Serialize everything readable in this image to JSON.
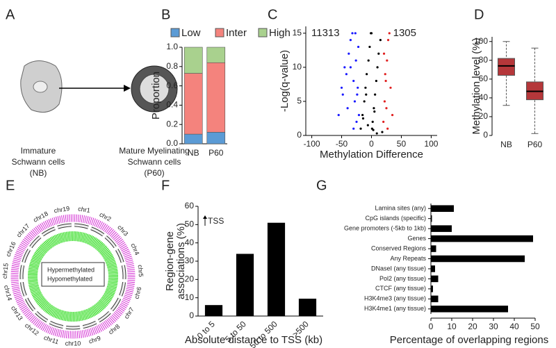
{
  "panel_a": {
    "panel_label": "A",
    "left_lines": [
      "Immature",
      "Schwann cells",
      "(NB)"
    ],
    "right_lines": [
      "Mature Myelinating",
      "Schwann cells",
      "(P60)"
    ]
  },
  "panel_e": {
    "panel_label": "E",
    "chromosomes": [
      "chr1",
      "chr2",
      "chr3",
      "chr4",
      "chr5",
      "chr6",
      "chr7",
      "chr8",
      "chr9",
      "chr10",
      "chr11",
      "chr12",
      "chr13",
      "chr14",
      "chr15",
      "chr16",
      "chr17",
      "chr18",
      "chr19"
    ],
    "legend": [
      "Hypermethylated",
      "Hypomethylated"
    ]
  },
  "chart_data": [
    {
      "type": "stacked_bar",
      "panel_label": "B",
      "y_label": "Proportion",
      "categories": [
        "NB",
        "P60"
      ],
      "series": [
        {
          "name": "Low",
          "color": "#5b9bd5",
          "values": [
            0.1,
            0.12
          ]
        },
        {
          "name": "Inter",
          "color": "#f4837d",
          "values": [
            0.63,
            0.72
          ]
        },
        {
          "name": "High",
          "color": "#a9d18e",
          "values": [
            0.27,
            0.16
          ]
        }
      ],
      "ylim": [
        0,
        1
      ],
      "yticks": [
        {
          "value": 0,
          "label": "0.0"
        },
        0.2,
        0.4,
        0.6,
        0.8,
        {
          "value": 1,
          "label": "1.0"
        }
      ]
    },
    {
      "type": "scatter",
      "panel_label": "C",
      "x_label": "Methylation Difference",
      "y_label": "-Log(q-value)",
      "annotations": [
        {
          "text": "11313",
          "color": "#1a1aff"
        },
        {
          "text": "1305",
          "color": "#e02020"
        }
      ],
      "series": [
        {
          "color": "#1a1aff",
          "x": [
            -55,
            -48,
            -42,
            -38,
            -35,
            -32,
            -30,
            -28,
            -26,
            -25,
            -23,
            -22,
            -40,
            -45,
            -30,
            -27,
            -24,
            -35,
            -50,
            -21
          ],
          "values": [
            3,
            6,
            9,
            12,
            14,
            15,
            8,
            5,
            11,
            2,
            7,
            13,
            4,
            10,
            1,
            15,
            6,
            10,
            7,
            3
          ]
        },
        {
          "color": "#000000",
          "x": [
            -18,
            -15,
            -12,
            -10,
            -8,
            -5,
            -3,
            0,
            2,
            4,
            6,
            8,
            10,
            12,
            15,
            18,
            -6,
            3,
            -14,
            9,
            1,
            -1,
            5,
            -9
          ],
          "values": [
            1,
            3,
            5,
            7,
            9,
            11,
            13,
            15,
            2,
            4,
            6,
            8,
            10,
            12,
            14,
            0.5,
            1.5,
            0.8,
            2.5,
            0.3,
            1,
            15,
            3.5,
            6
          ]
        },
        {
          "color": "#e02020",
          "x": [
            20,
            22,
            24,
            26,
            28,
            30,
            32,
            35,
            21,
            23,
            25,
            27
          ],
          "values": [
            2,
            5,
            8,
            11,
            14,
            15,
            7,
            3,
            12,
            9,
            4,
            1
          ]
        }
      ],
      "xlim": [
        -110,
        110
      ],
      "xticks": [
        -100,
        -50,
        0,
        50,
        100
      ],
      "ylim": [
        0,
        16
      ],
      "yticks": [
        0,
        5,
        10,
        15
      ]
    },
    {
      "type": "box",
      "panel_label": "D",
      "y_label": "Methylation level (%)",
      "categories": [
        "NB",
        "P60"
      ],
      "color": "#b5373a",
      "boxes": [
        {
          "whislo": 32,
          "q1": 64,
          "med": 74,
          "q3": 82,
          "whishi": 100
        },
        {
          "whislo": 2,
          "q1": 38,
          "med": 47,
          "q3": 57,
          "whishi": 93
        }
      ],
      "ylim": [
        0,
        105
      ],
      "yticks": [
        0,
        20,
        40,
        60,
        80,
        100
      ]
    },
    {
      "type": "bar",
      "panel_label": "F",
      "y_label_lines": [
        "Region-gene",
        "associations (%)"
      ],
      "x_label": "Absolute distance to TSS (kb)",
      "annotation": "TSS",
      "categories": [
        "0 to 5",
        "5 to 50",
        "50 to 500",
        ">500"
      ],
      "values": [
        6,
        34,
        51,
        9.5
      ],
      "color": "#000000",
      "ylim": [
        0,
        60
      ],
      "yticks": [
        0,
        10,
        20,
        30,
        40,
        50,
        60
      ]
    },
    {
      "type": "barh",
      "panel_label": "G",
      "x_label": "Percentage of overlapping regions",
      "categories": [
        "Lamina sites (any)",
        "CpG islands (specific)",
        "Gene promoters (-5kb to 1kb)",
        "Genes",
        "Conserved Regions",
        "Any Repeats",
        "DNaseI (any tissue)",
        "Pol2 (any tissue)",
        "CTCF (any tissue)",
        "H3K4me3 (any tissue)",
        "H3K4me1 (any tissue)"
      ],
      "values": [
        11,
        0.5,
        10,
        49,
        2.5,
        45,
        2,
        3.5,
        1,
        3.5,
        37
      ],
      "color": "#000000",
      "xlim": [
        0,
        50
      ],
      "xticks": [
        0,
        10,
        20,
        30,
        40,
        50
      ]
    }
  ]
}
